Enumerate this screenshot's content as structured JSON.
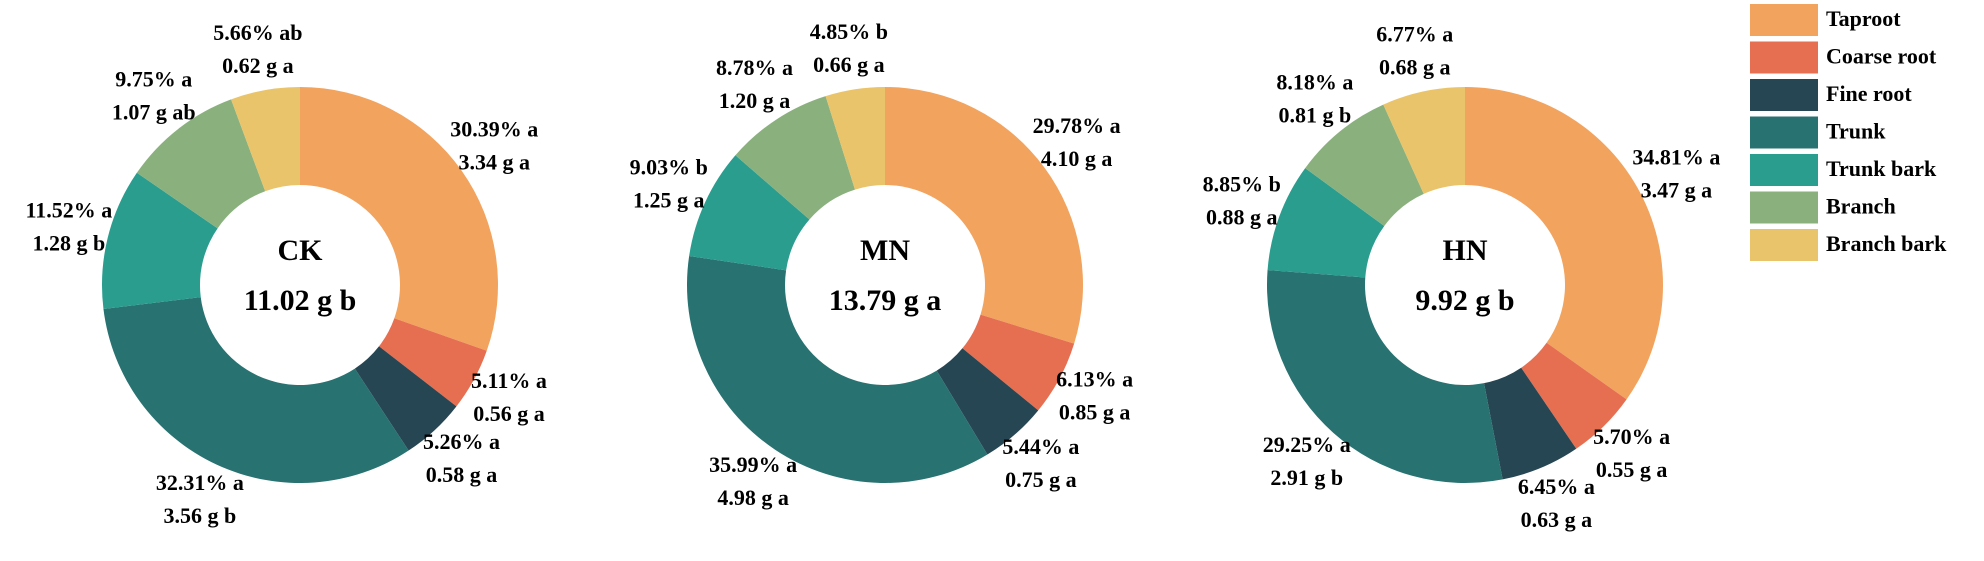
{
  "chart_data": [
    {
      "type": "pie",
      "title": "CK",
      "total_label": "11.02 g b",
      "categories": [
        "Taproot",
        "Coarse root",
        "Fine root",
        "Trunk",
        "Trunk bark",
        "Branch",
        "Branch bark"
      ],
      "colors": [
        "#f2a35e",
        "#e76f51",
        "#264653",
        "#287271",
        "#2a9d8f",
        "#8ab17d",
        "#e9c46a"
      ],
      "values": [
        30.39,
        5.11,
        5.26,
        32.31,
        11.52,
        9.75,
        5.66
      ],
      "value_labels": [
        "30.39% a",
        "5.11% a",
        "5.26% a",
        "32.31% a",
        "11.52% a",
        "9.75% a",
        "5.66% ab"
      ],
      "mass_labels": [
        "3.34 g a",
        "0.56 g a",
        "0.58 g a",
        "3.56 g b",
        "1.28 g b",
        "1.07 g ab",
        "0.62 g a"
      ]
    },
    {
      "type": "pie",
      "title": "MN",
      "total_label": "13.79 g a",
      "categories": [
        "Taproot",
        "Coarse root",
        "Fine root",
        "Trunk",
        "Trunk bark",
        "Branch",
        "Branch bark"
      ],
      "colors": [
        "#f2a35e",
        "#e76f51",
        "#264653",
        "#287271",
        "#2a9d8f",
        "#8ab17d",
        "#e9c46a"
      ],
      "values": [
        29.78,
        6.13,
        5.44,
        35.99,
        9.03,
        8.78,
        4.85
      ],
      "value_labels": [
        "29.78% a",
        "6.13% a",
        "5.44% a",
        "35.99% a",
        "9.03% b",
        "8.78% a",
        "4.85% b"
      ],
      "mass_labels": [
        "4.10 g a",
        "0.85 g a",
        "0.75 g a",
        "4.98 g a",
        "1.25 g a",
        "1.20 g a",
        "0.66 g a"
      ]
    },
    {
      "type": "pie",
      "title": "HN",
      "total_label": "9.92 g b",
      "categories": [
        "Taproot",
        "Coarse root",
        "Fine root",
        "Trunk",
        "Trunk bark",
        "Branch",
        "Branch bark"
      ],
      "colors": [
        "#f2a35e",
        "#e76f51",
        "#264653",
        "#287271",
        "#2a9d8f",
        "#8ab17d",
        "#e9c46a"
      ],
      "values": [
        34.81,
        5.7,
        6.45,
        29.25,
        8.85,
        8.18,
        6.77
      ],
      "value_labels": [
        "34.81% a",
        "5.70% a",
        "6.45% a",
        "29.25% a",
        "8.85% b",
        "8.18% a",
        "6.77% a"
      ],
      "mass_labels": [
        "3.47 g a",
        "0.55 g a",
        "0.63 g a",
        "2.91 g b",
        "0.88 g a",
        "0.81 g b",
        "0.68 g a"
      ]
    }
  ]
}
